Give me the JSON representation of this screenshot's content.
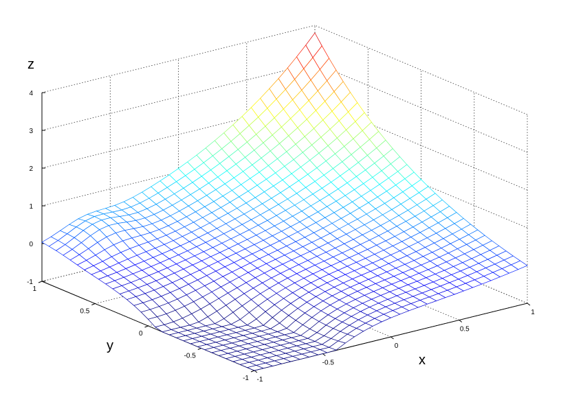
{
  "chart_data": {
    "type": "surface",
    "title": "",
    "xlabel": "x",
    "ylabel": "y",
    "zlabel": "z",
    "xlim": [
      -1,
      1
    ],
    "ylim": [
      -1,
      1
    ],
    "zlim": [
      -1,
      4
    ],
    "xticks": [
      "-1",
      "-0.5",
      "0",
      "0.5",
      "1"
    ],
    "yticks": [
      "-1",
      "-0.5",
      "0",
      "0.5",
      "1"
    ],
    "zticks": [
      "-1",
      "0",
      "1",
      "2",
      "3",
      "4"
    ],
    "grid": true,
    "colormap": "jet",
    "mesh_resolution": 31,
    "surface_samples": {
      "corner_x1_y1": 3.8,
      "corner_xm1_ym1": -0.8,
      "corner_x1_ym1": -0.4,
      "corner_xm1_y1": 0.0,
      "center": 0.0
    }
  }
}
